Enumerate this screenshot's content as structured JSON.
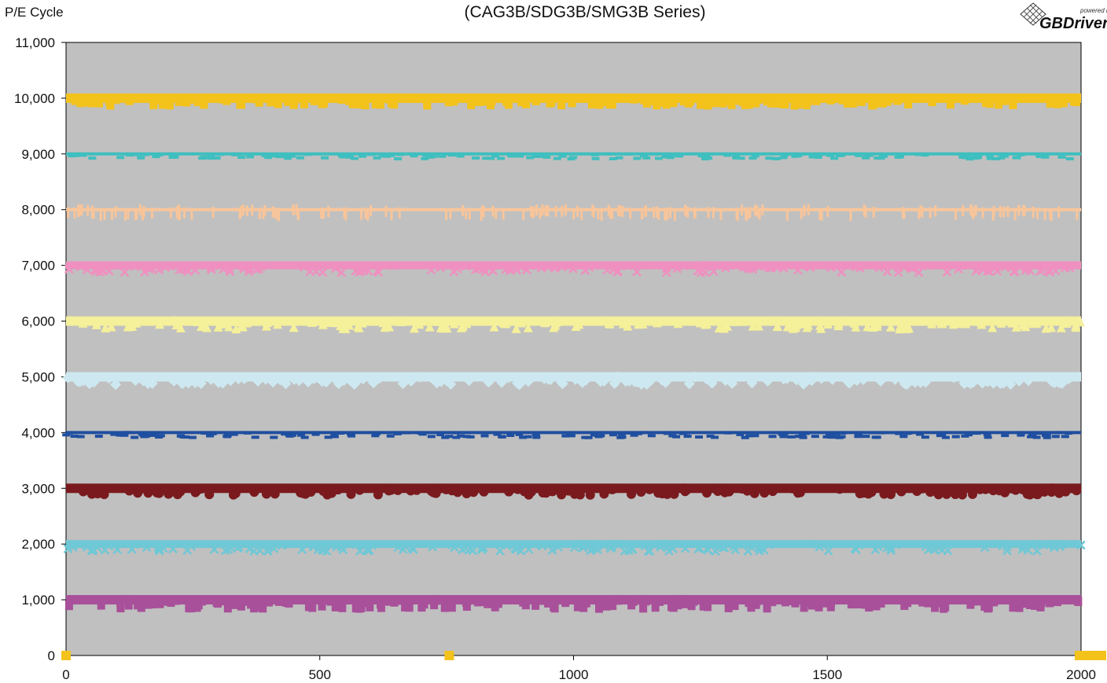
{
  "chart_data": {
    "type": "scatter",
    "title": "(CAG3B/SDG3B/SMG3B Series)",
    "ylabel": "P/E Cycle",
    "xlabel": "",
    "xlim": [
      0,
      2000
    ],
    "ylim": [
      0,
      11000
    ],
    "x_ticks": [
      "0",
      "500",
      "1000",
      "1500",
      "2000"
    ],
    "y_ticks": [
      "0",
      "1,000",
      "2,000",
      "3,000",
      "4,000",
      "5,000",
      "6,000",
      "7,000",
      "8,000",
      "9,000",
      "10,000",
      "11,000"
    ],
    "grid": false,
    "legend": "none",
    "plot_background": "#c0c0c0",
    "series": [
      {
        "level": 10000,
        "color": "#f3c21b",
        "marker": "square",
        "dip": 120
      },
      {
        "level": 9000,
        "color": "#3fbfbf",
        "marker": "dash",
        "dip": 90
      },
      {
        "level": 8000,
        "color": "#f8c59a",
        "marker": "bar",
        "dip": 110
      },
      {
        "level": 7000,
        "color": "#ef90c0",
        "marker": "x",
        "dip": 130
      },
      {
        "level": 6000,
        "color": "#f5f09a",
        "marker": "triangle",
        "dip": 150
      },
      {
        "level": 5000,
        "color": "#cde8f0",
        "marker": "diamond",
        "dip": 140
      },
      {
        "level": 4000,
        "color": "#1f4fa0",
        "marker": "dash",
        "dip": 90
      },
      {
        "level": 3000,
        "color": "#7a1a1e",
        "marker": "circle",
        "dip": 120
      },
      {
        "level": 2000,
        "color": "#6fc8d6",
        "marker": "x",
        "dip": 130
      },
      {
        "level": 1000,
        "color": "#a8509a",
        "marker": "square",
        "dip": 150
      }
    ],
    "zero_points": [
      {
        "x": 0,
        "y": 0,
        "color": "#f3c21b"
      },
      {
        "x": 755,
        "y": 0,
        "color": "#f3c21b"
      },
      {
        "x": 2000,
        "y": 0,
        "color": "#f3c21b"
      }
    ]
  },
  "logo": {
    "small_text": "powered by",
    "brand": "GBDriver"
  }
}
